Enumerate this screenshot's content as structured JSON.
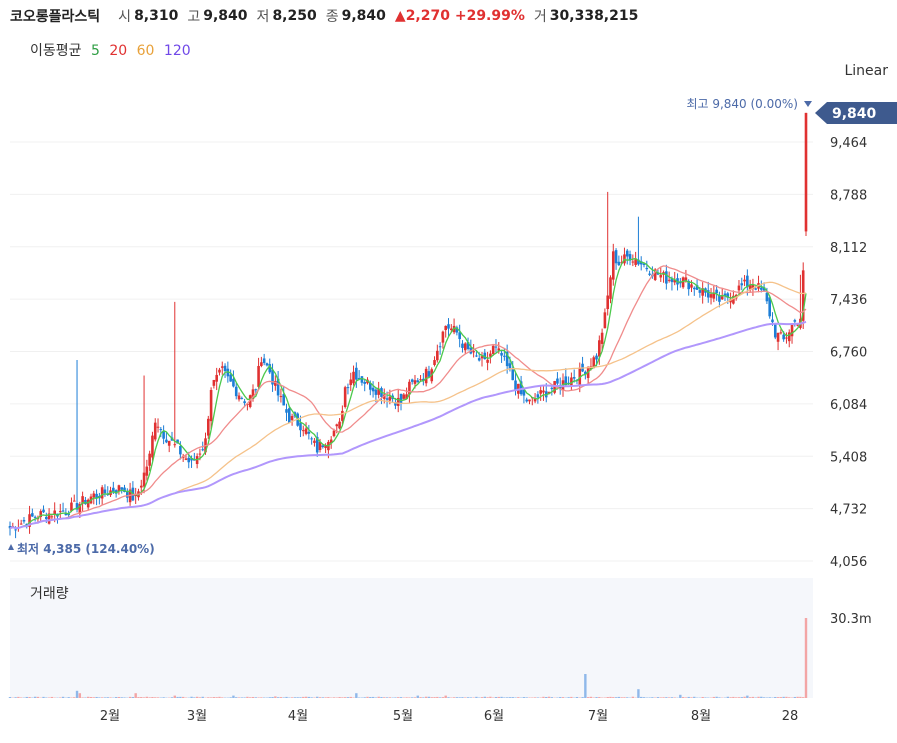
{
  "header": {
    "name": "코오롱플라스틱",
    "open_label": "시",
    "open": "8,310",
    "high_label": "고",
    "high": "9,840",
    "low_label": "저",
    "low": "8,250",
    "close_label": "종",
    "close": "9,840",
    "change": "▲2,270 +29.99%",
    "volume_label": "거",
    "volume": "30,338,215"
  },
  "ma_legend": {
    "label": "이동평균",
    "items": [
      {
        "text": "5",
        "color": "#2f9e44"
      },
      {
        "text": "20",
        "color": "#e03131"
      },
      {
        "text": "60",
        "color": "#e8a13a"
      },
      {
        "text": "120",
        "color": "#7048e8"
      }
    ]
  },
  "scale_label": "Linear",
  "price_badge": "9,840",
  "volume_label": "거래량",
  "colors": {
    "up": "#e03131",
    "down": "#1c7ed6",
    "ma5": "#4cc94c",
    "ma20": "#f08c8c",
    "ma60": "#f5c28a",
    "ma120": "#b197fc",
    "badge": "#3e5a8e",
    "annotation": "#4c6aa8"
  },
  "chart_data": {
    "type": "candlestick",
    "title": "",
    "y_axis": {
      "ticks": [
        "9,464",
        "8,788",
        "8,112",
        "7,436",
        "6,760",
        "6,084",
        "5,408",
        "4,732",
        "4,056"
      ],
      "tick_values": [
        9464,
        8788,
        8112,
        7436,
        6760,
        6084,
        5408,
        4732,
        4056
      ],
      "range": [
        4056,
        9840
      ],
      "scale": "linear"
    },
    "x_axis": {
      "ticks": [
        "2월",
        "3월",
        "4월",
        "5월",
        "6월",
        "7월",
        "8월",
        "28"
      ]
    },
    "high_annotation": "최고 9,840 (0.00%)",
    "low_annotation": "최저 4,385 (124.40%)",
    "last_bar": {
      "open": 8310,
      "high": 9840,
      "low": 8250,
      "close": 9840,
      "volume": 30338215
    },
    "volume_axis": {
      "ticks": [
        "30.3m"
      ],
      "tick_values": [
        30300000
      ]
    },
    "series": [
      {
        "name": "5",
        "type": "ma"
      },
      {
        "name": "20",
        "type": "ma"
      },
      {
        "name": "60",
        "type": "ma"
      },
      {
        "name": "120",
        "type": "ma"
      }
    ],
    "anchors": [
      [
        0,
        4480
      ],
      [
        10,
        4650
      ],
      [
        20,
        4700
      ],
      [
        30,
        4900
      ],
      [
        40,
        5000
      ],
      [
        45,
        4850
      ],
      [
        50,
        5400
      ],
      [
        52,
        5900
      ],
      [
        55,
        5700
      ],
      [
        60,
        5500
      ],
      [
        65,
        5300
      ],
      [
        70,
        5600
      ],
      [
        72,
        6300
      ],
      [
        76,
        6500
      ],
      [
        80,
        6300
      ],
      [
        85,
        6100
      ],
      [
        88,
        6300
      ],
      [
        90,
        6700
      ],
      [
        93,
        6500
      ],
      [
        96,
        6200
      ],
      [
        100,
        5900
      ],
      [
        105,
        5800
      ],
      [
        108,
        5600
      ],
      [
        110,
        5500
      ],
      [
        115,
        5700
      ],
      [
        118,
        5800
      ],
      [
        120,
        6300
      ],
      [
        123,
        6500
      ],
      [
        126,
        6400
      ],
      [
        130,
        6300
      ],
      [
        135,
        6200
      ],
      [
        140,
        6100
      ],
      [
        143,
        6300
      ],
      [
        146,
        6400
      ],
      [
        150,
        6500
      ],
      [
        153,
        6800
      ],
      [
        156,
        7100
      ],
      [
        160,
        7000
      ],
      [
        163,
        6800
      ],
      [
        166,
        6700
      ],
      [
        170,
        6600
      ],
      [
        173,
        6800
      ],
      [
        176,
        6700
      ],
      [
        180,
        6400
      ],
      [
        183,
        6200
      ],
      [
        186,
        6100
      ],
      [
        190,
        6200
      ],
      [
        195,
        6300
      ],
      [
        200,
        6400
      ],
      [
        205,
        6500
      ],
      [
        210,
        6700
      ],
      [
        213,
        7200
      ],
      [
        216,
        8000
      ],
      [
        218,
        7900
      ],
      [
        222,
        8000
      ],
      [
        226,
        7900
      ],
      [
        230,
        7800
      ],
      [
        235,
        7700
      ],
      [
        240,
        7700
      ],
      [
        245,
        7600
      ],
      [
        250,
        7500
      ],
      [
        255,
        7400
      ],
      [
        258,
        7500
      ],
      [
        262,
        7600
      ],
      [
        266,
        7650
      ],
      [
        270,
        7500
      ],
      [
        274,
        7000
      ],
      [
        277,
        6900
      ],
      [
        280,
        7100
      ],
      [
        283,
        7200
      ],
      [
        285,
        8310
      ]
    ],
    "volume_spikes": [
      [
        24,
        0.09
      ],
      [
        25,
        0.06
      ],
      [
        45,
        0.06
      ],
      [
        59,
        0.03
      ],
      [
        80,
        0.03
      ],
      [
        95,
        0.02
      ],
      [
        124,
        0.06
      ],
      [
        146,
        0.03
      ],
      [
        156,
        0.03
      ],
      [
        206,
        0.3
      ],
      [
        225,
        0.11
      ],
      [
        240,
        0.04
      ],
      [
        264,
        0.03
      ],
      [
        285,
        1.0
      ]
    ]
  }
}
